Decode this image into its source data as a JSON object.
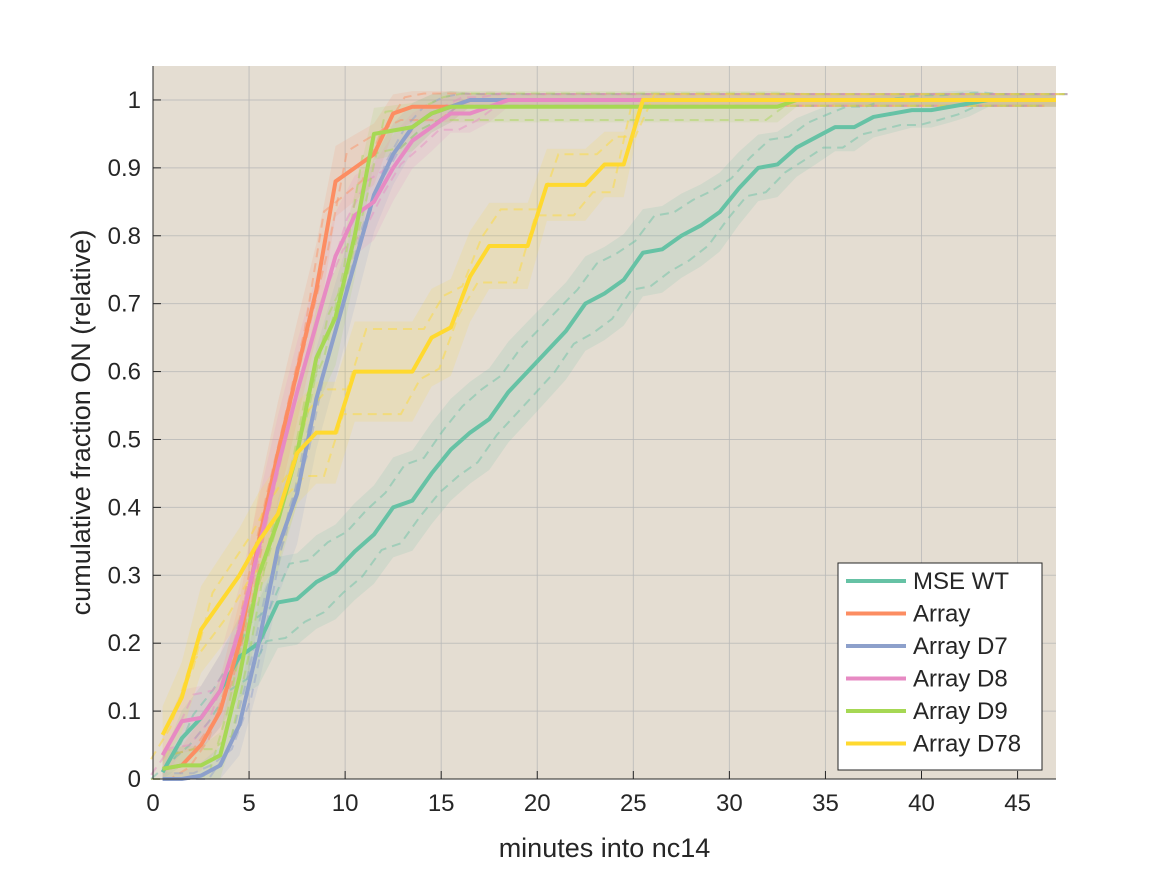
{
  "chart_data": {
    "type": "line",
    "title": "",
    "xlabel": "minutes into nc14",
    "ylabel": "cumulative fraction ON (relative)",
    "xlim": [
      0,
      47
    ],
    "ylim": [
      0,
      1.05
    ],
    "xticks": [
      0,
      5,
      10,
      15,
      20,
      25,
      30,
      35,
      40,
      45
    ],
    "yticks": [
      0,
      0.1,
      0.2,
      0.3,
      0.4,
      0.5,
      0.6,
      0.7,
      0.8,
      0.9,
      1
    ],
    "xtick_labels": [
      "0",
      "5",
      "10",
      "15",
      "20",
      "25",
      "30",
      "35",
      "40",
      "45"
    ],
    "ytick_labels": [
      "0",
      "0.1",
      "0.2",
      "0.3",
      "0.4",
      "0.5",
      "0.6",
      "0.7",
      "0.8",
      "0.9",
      "1"
    ],
    "grid": true,
    "background_color": "#e4ddd2",
    "legend_position": "bottom-right",
    "series": [
      {
        "name": "MSE WT",
        "color": "#66c2a5",
        "x": [
          0.5,
          1.5,
          2.5,
          3.5,
          4.5,
          5.5,
          6.5,
          7.5,
          8.5,
          9.5,
          10.5,
          11.5,
          12.5,
          13.5,
          14.5,
          15.5,
          16.5,
          17.5,
          18.5,
          19.5,
          20.5,
          21.5,
          22.5,
          23.5,
          24.5,
          25.5,
          26.5,
          27.5,
          28.5,
          29.5,
          30.5,
          31.5,
          32.5,
          33.5,
          34.5,
          35.5,
          36.5,
          37.5,
          38.5,
          39.5,
          40.5,
          41.5,
          42.5,
          43.5,
          47
        ],
        "y": [
          0.01,
          0.06,
          0.09,
          0.13,
          0.18,
          0.2,
          0.26,
          0.265,
          0.29,
          0.305,
          0.335,
          0.36,
          0.4,
          0.41,
          0.45,
          0.485,
          0.51,
          0.53,
          0.57,
          0.6,
          0.63,
          0.66,
          0.7,
          0.715,
          0.735,
          0.775,
          0.78,
          0.8,
          0.815,
          0.835,
          0.87,
          0.9,
          0.905,
          0.93,
          0.945,
          0.96,
          0.96,
          0.975,
          0.98,
          0.985,
          0.985,
          0.99,
          0.995,
          1.0,
          1.0
        ]
      },
      {
        "name": "Array",
        "color": "#fc8d62",
        "x": [
          0.5,
          1.5,
          2.5,
          3.5,
          4.5,
          5.5,
          6.5,
          7.5,
          8.5,
          9.5,
          10.5,
          11.5,
          12.5,
          13.5,
          14.5,
          15.5,
          16.5,
          17.5,
          47
        ],
        "y": [
          0.015,
          0.02,
          0.05,
          0.1,
          0.2,
          0.35,
          0.48,
          0.6,
          0.72,
          0.88,
          0.9,
          0.92,
          0.98,
          0.99,
          0.99,
          0.99,
          1.0,
          1.0,
          1.0
        ]
      },
      {
        "name": "Array D7",
        "color": "#8da0cb",
        "x": [
          0.5,
          1.5,
          2.5,
          3.5,
          4.5,
          5.5,
          6.5,
          7.5,
          8.5,
          9.5,
          10.5,
          11.5,
          12.5,
          13.5,
          14.5,
          15.5,
          16.5,
          17.5,
          47
        ],
        "y": [
          0.0,
          0.0,
          0.005,
          0.02,
          0.08,
          0.2,
          0.34,
          0.42,
          0.56,
          0.66,
          0.76,
          0.86,
          0.92,
          0.96,
          0.98,
          0.99,
          1.0,
          1.0,
          1.0
        ]
      },
      {
        "name": "Array D8",
        "color": "#e78ac3",
        "x": [
          0.5,
          1.5,
          2.5,
          3.5,
          4.5,
          5.5,
          6.5,
          7.5,
          8.5,
          9.5,
          10.5,
          11.5,
          12.5,
          13.5,
          14.5,
          15.5,
          16.5,
          17.5,
          18.5,
          47
        ],
        "y": [
          0.035,
          0.085,
          0.09,
          0.13,
          0.22,
          0.34,
          0.46,
          0.57,
          0.67,
          0.77,
          0.83,
          0.85,
          0.9,
          0.94,
          0.96,
          0.98,
          0.98,
          0.99,
          1.0,
          1.0
        ]
      },
      {
        "name": "Array D9",
        "color": "#a6d854",
        "x": [
          0.5,
          1.5,
          2.5,
          3.5,
          4.5,
          5.5,
          6.5,
          7.5,
          8.5,
          9.5,
          10.5,
          11.5,
          12.5,
          13.5,
          14.5,
          15.5,
          16.5,
          17.5,
          18.5,
          32.5,
          33.5,
          47
        ],
        "y": [
          0.015,
          0.02,
          0.02,
          0.035,
          0.15,
          0.3,
          0.38,
          0.48,
          0.62,
          0.68,
          0.8,
          0.95,
          0.955,
          0.96,
          0.98,
          0.99,
          0.99,
          0.99,
          0.99,
          0.99,
          1.0,
          1.0
        ]
      },
      {
        "name": "Array D78",
        "color": "#ffd92f",
        "x": [
          0.5,
          1.5,
          2.5,
          3.5,
          4.5,
          5.5,
          6.5,
          7.5,
          8.5,
          9.5,
          10.5,
          11.5,
          12.5,
          13.5,
          14.5,
          15.5,
          16.5,
          17.5,
          18.5,
          19.5,
          20.5,
          21.5,
          22.5,
          23.5,
          24.5,
          25.5,
          26.5,
          47
        ],
        "y": [
          0.065,
          0.12,
          0.22,
          0.26,
          0.3,
          0.35,
          0.39,
          0.48,
          0.51,
          0.51,
          0.6,
          0.6,
          0.6,
          0.6,
          0.65,
          0.665,
          0.74,
          0.785,
          0.785,
          0.785,
          0.875,
          0.875,
          0.875,
          0.905,
          0.905,
          1.0,
          1.0,
          1.0
        ]
      }
    ]
  }
}
